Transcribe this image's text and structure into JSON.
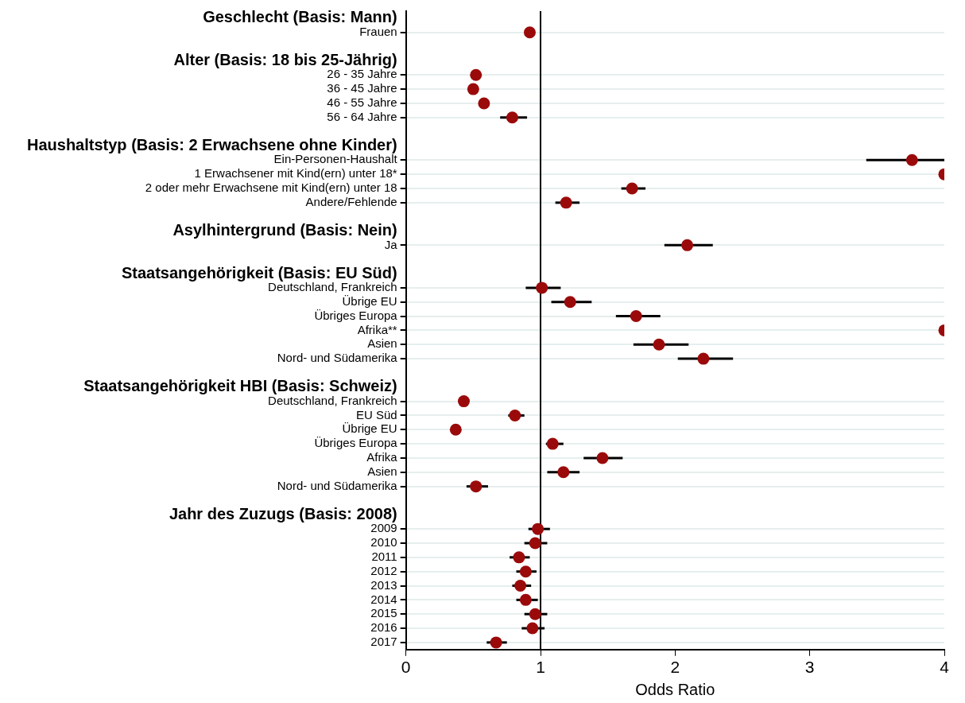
{
  "chart_data": {
    "type": "scatter",
    "orientation": "horizontal",
    "xlabel": "Odds Ratio",
    "color": "#9b0a0a",
    "marker": "circle",
    "grid": "y",
    "legend": false,
    "categories": [
      "Geschlecht (Basis: Mann)",
      "Frauen",
      null,
      "Alter (Basis: 18 bis 25-Jährig)",
      "26 - 35 Jahre",
      "36 - 45 Jahre",
      "46 - 55 Jahre",
      "56 - 64 Jahre",
      null,
      "Haushaltstyp (Basis: 2 Erwachsene ohne Kinder)",
      "Ein-Personen-Haushalt",
      "1 Erwachsener mit Kind(ern) unter 18*",
      "2 oder mehr Erwachsene mit Kind(ern) unter 18",
      "Andere/Fehlende",
      null,
      "Asylhintergrund (Basis: Nein)",
      "Ja",
      null,
      "Staatsangehörigkeit (Basis: EU Süd)",
      "Deutschland, Frankreich",
      "Übrige EU",
      "Übriges Europa",
      "Afrika**",
      "Asien",
      "Nord- und Südamerika",
      null,
      "Staatsangehörigkeit HBI (Basis: Schweiz)",
      "Deutschland, Frankreich",
      "EU Süd",
      "Übrige EU",
      "Übriges Europa",
      "Afrika",
      "Asien",
      "Nord- und Südamerika",
      null,
      "Jahr des Zuzugs (Basis: 2008)",
      "2009",
      "2010",
      "2011",
      "2012",
      "2013",
      "2014",
      "2015",
      "2016",
      "2017"
    ],
    "values": [
      null,
      0.92,
      null,
      null,
      0.52,
      0.5,
      0.58,
      0.79,
      null,
      null,
      3.76,
      4,
      1.68,
      1.19,
      null,
      null,
      2.09,
      null,
      null,
      1.01,
      1.22,
      1.71,
      4,
      1.88,
      2.21,
      null,
      null,
      0.43,
      0.81,
      0.37,
      1.09,
      1.46,
      1.17,
      0.52,
      null,
      null,
      0.98,
      0.96,
      0.84,
      0.89,
      0.85,
      0.89,
      0.96,
      0.94,
      0.67
    ],
    "errors": [
      null,
      null,
      null,
      null,
      null,
      null,
      null,
      [
        0.7,
        0.9
      ],
      null,
      null,
      [
        3.42,
        4
      ],
      null,
      [
        1.6,
        1.78
      ],
      [
        1.11,
        1.29
      ],
      null,
      null,
      [
        1.92,
        2.28
      ],
      null,
      null,
      [
        0.89,
        1.15
      ],
      [
        1.08,
        1.38
      ],
      [
        1.56,
        1.89
      ],
      null,
      [
        1.69,
        2.1
      ],
      [
        2.02,
        2.43
      ],
      null,
      null,
      null,
      [
        0.76,
        0.88
      ],
      null,
      [
        1.04,
        1.17
      ],
      [
        1.32,
        1.61
      ],
      [
        1.05,
        1.29
      ],
      [
        0.45,
        0.61
      ],
      null,
      null,
      [
        0.91,
        1.07
      ],
      [
        0.88,
        1.05
      ],
      [
        0.77,
        0.92
      ],
      [
        0.82,
        0.97
      ],
      [
        0.79,
        0.93
      ],
      [
        0.82,
        0.98
      ],
      [
        0.88,
        1.05
      ],
      [
        0.86,
        1.03
      ],
      [
        0.6,
        0.75
      ]
    ],
    "xlim": [
      0,
      4
    ],
    "xticks": [
      0,
      1,
      2,
      3,
      4
    ],
    "ref_lines": [
      {
        "axis": "x",
        "value": 1,
        "color": "#000000"
      }
    ]
  }
}
